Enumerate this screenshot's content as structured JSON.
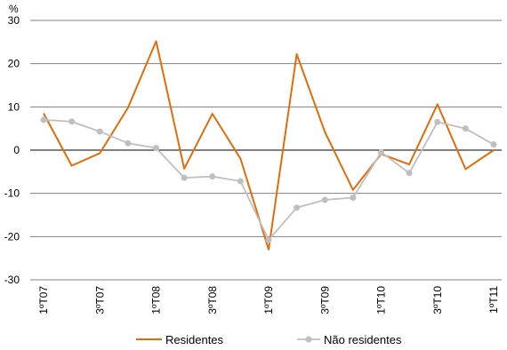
{
  "chart_data": {
    "type": "line",
    "unit": "%",
    "categories": [
      "1ºT07",
      "2ºT07",
      "3ºT07",
      "4ºT07",
      "1ºT08",
      "2ºT08",
      "3ºT08",
      "4ºT08",
      "1ºT09",
      "2ºT09",
      "3ºT09",
      "4ºT09",
      "1ºT10",
      "2ºT10",
      "3ºT10",
      "4ºT10",
      "1ºT11"
    ],
    "tick_labels": [
      "1ºT07",
      "3ºT07",
      "1ºT08",
      "3ºT08",
      "1ºT09",
      "3ºT09",
      "1ºT10",
      "3ºT10",
      "1ºT11"
    ],
    "yticks": [
      30,
      20,
      10,
      0,
      -10,
      -20,
      -30
    ],
    "ylim": [
      -30,
      30
    ],
    "grid": true,
    "legend_position": "bottom",
    "series": [
      {
        "name": "Residentes",
        "color": "#e36c0a",
        "marker": "none",
        "values": [
          8.5,
          -3.6,
          -0.7,
          9.8,
          25.2,
          -4.3,
          8.4,
          -2.0,
          -23.0,
          22.2,
          4.2,
          -9.2,
          -0.9,
          -3.3,
          10.6,
          -4.4,
          0.0
        ]
      },
      {
        "name": "Não residentes",
        "color": "#bfbfbf",
        "marker": "circle",
        "values": [
          7.0,
          6.6,
          4.3,
          1.6,
          0.5,
          -6.4,
          -6.1,
          -7.2,
          -20.8,
          -13.3,
          -11.5,
          -11.0,
          -0.5,
          -5.3,
          6.5,
          5.0,
          1.3
        ]
      }
    ],
    "xlabel": "",
    "ylabel": "%"
  }
}
